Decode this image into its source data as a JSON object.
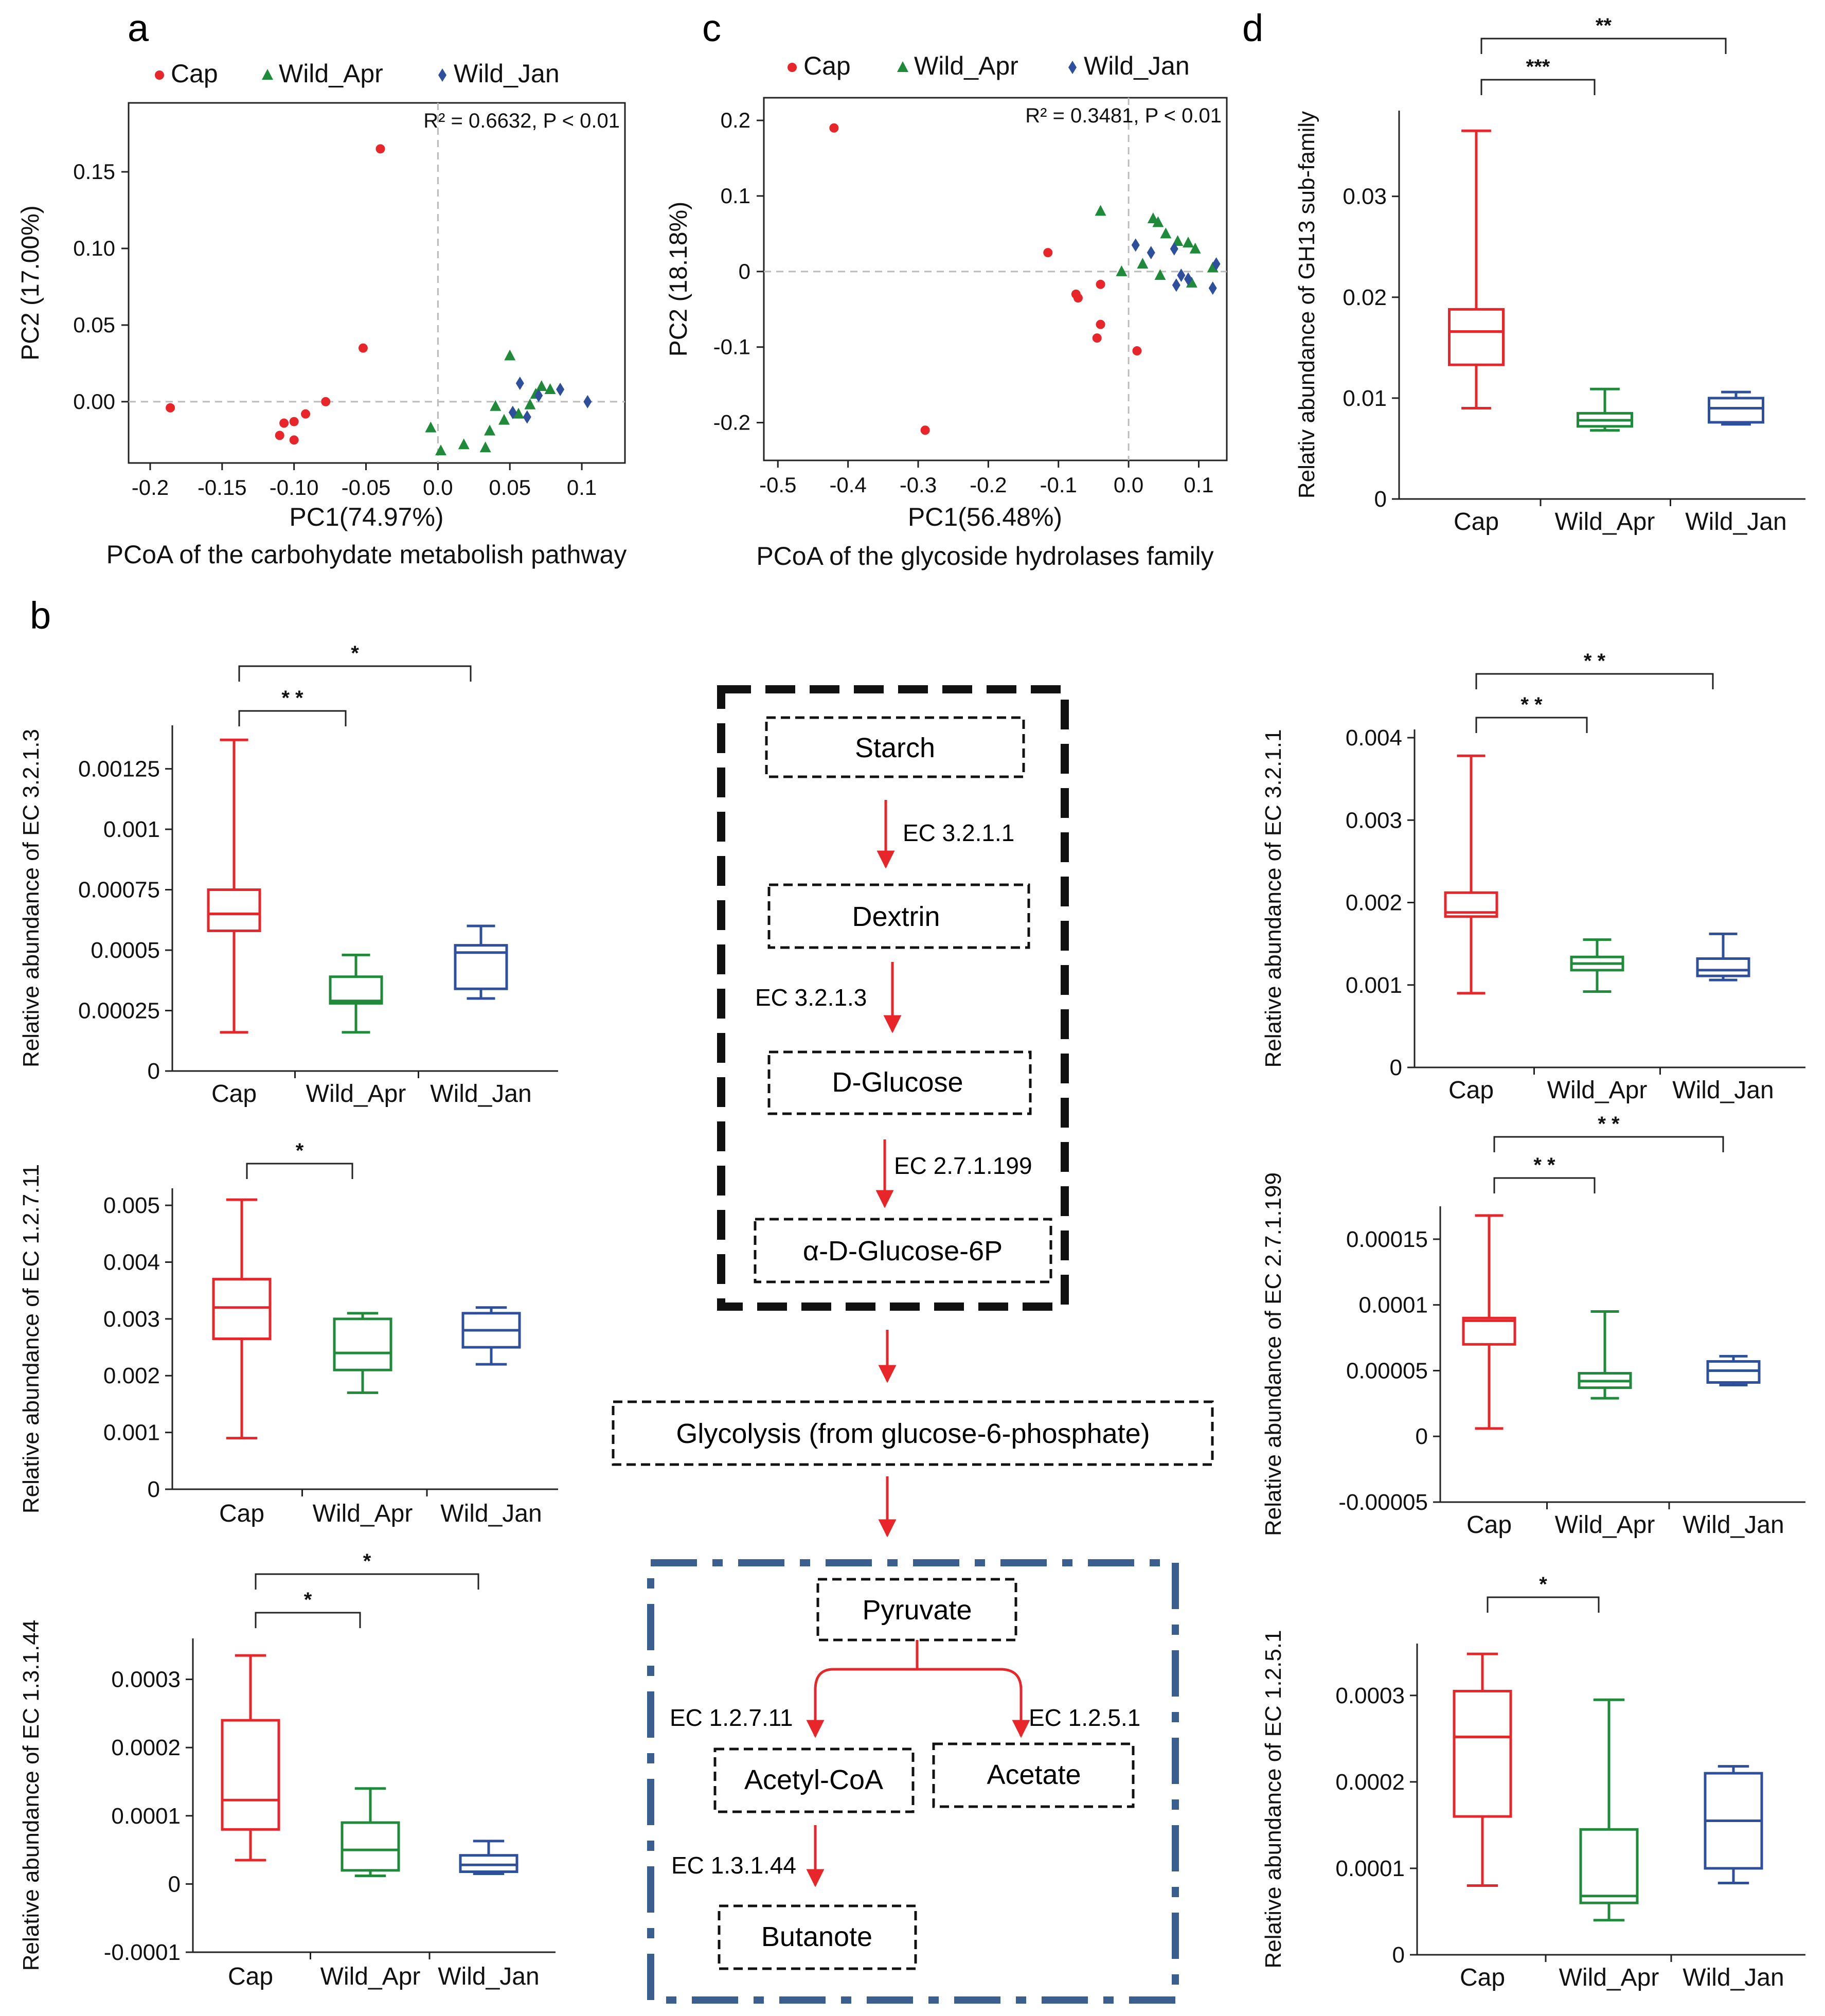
{
  "colors": {
    "cap": "#e8262a",
    "apr": "#1e8a3a",
    "jan": "#2e4f9c",
    "axis": "#222222",
    "grid": "#bbbbbb",
    "dash_black": "#111111",
    "dash_blue": "#3a5f8f",
    "arrow": "#e8262a"
  },
  "panel_letters": {
    "a": "a",
    "b": "b",
    "c": "c",
    "d": "d"
  },
  "chart_data": [
    {
      "id": "pcoa_a",
      "type": "scatter",
      "title": "PCoA of the carbohydate metabolish pathway",
      "xlabel": "PC1(74.97%)",
      "ylabel": "PC2 (17.00%)",
      "annotation": "R² = 0.6632, P < 0.01",
      "xlim": [
        -0.215,
        0.13
      ],
      "ylim": [
        -0.04,
        0.195
      ],
      "xticks": [
        -0.2,
        -0.15,
        -0.1,
        -0.05,
        0.0,
        0.05,
        0.1
      ],
      "xtick_labels": [
        "-0.2",
        "-0.15",
        "-0.10",
        "-0.05",
        "0.0",
        "0.05",
        "0.1"
      ],
      "yticks": [
        0.0,
        0.05,
        0.1,
        0.15
      ],
      "ytick_labels": [
        "0.00",
        "0.05",
        "0.10",
        "0.15"
      ],
      "legend": [
        "Cap",
        "Wild_Apr",
        "Wild_Jan"
      ],
      "series": [
        {
          "name": "Cap",
          "marker": "circle",
          "points": [
            [
              -0.04,
              0.165
            ],
            [
              -0.052,
              0.035
            ],
            [
              -0.186,
              -0.004
            ],
            [
              -0.078,
              0.0
            ],
            [
              -0.092,
              -0.008
            ],
            [
              -0.1,
              -0.013
            ],
            [
              -0.107,
              -0.014
            ],
            [
              -0.11,
              -0.022
            ],
            [
              -0.1,
              -0.025
            ]
          ]
        },
        {
          "name": "Wild_Apr",
          "marker": "triangle",
          "points": [
            [
              0.05,
              0.03
            ],
            [
              -0.005,
              -0.017
            ],
            [
              0.002,
              -0.032
            ],
            [
              0.018,
              -0.028
            ],
            [
              0.033,
              -0.03
            ],
            [
              0.036,
              -0.019
            ],
            [
              0.046,
              -0.012
            ],
            [
              0.04,
              -0.003
            ],
            [
              0.056,
              -0.008
            ],
            [
              0.068,
              0.005
            ],
            [
              0.072,
              0.01
            ],
            [
              0.078,
              0.008
            ],
            [
              0.064,
              -0.002
            ]
          ]
        },
        {
          "name": "Wild_Jan",
          "marker": "diamond",
          "points": [
            [
              0.057,
              0.012
            ],
            [
              0.052,
              -0.007
            ],
            [
              0.062,
              -0.01
            ],
            [
              0.085,
              0.008
            ],
            [
              0.104,
              0.0
            ],
            [
              0.07,
              0.004
            ]
          ]
        }
      ]
    },
    {
      "id": "pcoa_c",
      "type": "scatter",
      "title": "PCoA of the glycoside hydrolases family",
      "xlabel": "PC1(56.48%)",
      "ylabel": "PC2 (18.18%)",
      "annotation": "R² = 0.3481, P < 0.01",
      "xlim": [
        -0.52,
        0.14
      ],
      "ylim": [
        -0.25,
        0.23
      ],
      "xticks": [
        -0.5,
        -0.4,
        -0.3,
        -0.2,
        -0.1,
        0.0,
        0.1
      ],
      "xtick_labels": [
        "-0.5",
        "-0.4",
        "-0.3",
        "-0.2",
        "-0.1",
        "0.0",
        "0.1"
      ],
      "yticks": [
        -0.2,
        -0.1,
        0.0,
        0.1,
        0.2
      ],
      "ytick_labels": [
        "-0.2",
        "-0.1",
        "0",
        "0.1",
        "0.2"
      ],
      "legend": [
        "Cap",
        "Wild_Apr",
        "Wild_Jan"
      ],
      "series": [
        {
          "name": "Cap",
          "marker": "circle",
          "points": [
            [
              -0.42,
              0.19
            ],
            [
              -0.29,
              -0.21
            ],
            [
              -0.115,
              0.025
            ],
            [
              -0.075,
              -0.03
            ],
            [
              -0.072,
              -0.035
            ],
            [
              -0.04,
              -0.017
            ],
            [
              -0.04,
              -0.07
            ],
            [
              -0.045,
              -0.088
            ],
            [
              0.012,
              -0.105
            ]
          ]
        },
        {
          "name": "Wild_Apr",
          "marker": "triangle",
          "points": [
            [
              -0.04,
              0.08
            ],
            [
              -0.01,
              0.0
            ],
            [
              0.035,
              0.07
            ],
            [
              0.042,
              0.065
            ],
            [
              0.053,
              0.05
            ],
            [
              0.07,
              0.04
            ],
            [
              0.085,
              0.038
            ],
            [
              0.095,
              0.03
            ],
            [
              0.12,
              0.005
            ],
            [
              0.02,
              0.01
            ],
            [
              0.045,
              -0.005
            ],
            [
              0.09,
              -0.015
            ]
          ]
        },
        {
          "name": "Wild_Jan",
          "marker": "diamond",
          "points": [
            [
              0.01,
              0.035
            ],
            [
              0.032,
              0.025
            ],
            [
              0.065,
              0.03
            ],
            [
              0.075,
              -0.005
            ],
            [
              0.085,
              -0.01
            ],
            [
              0.068,
              -0.018
            ],
            [
              0.12,
              -0.022
            ],
            [
              0.125,
              0.01
            ]
          ]
        }
      ]
    },
    {
      "id": "box_gh13",
      "type": "box",
      "ylabel": "Relativ abundance of GH13 sub-family",
      "categories": [
        "Cap",
        "Wild_Apr",
        "Wild_Jan"
      ],
      "ylim": [
        0,
        0.0385
      ],
      "yticks": [
        0,
        0.01,
        0.02,
        0.03
      ],
      "ytick_labels": [
        "0",
        "0.01",
        "0.02",
        "0.03"
      ],
      "boxes": [
        {
          "min": 0.009,
          "q1": 0.0133,
          "median": 0.0166,
          "q3": 0.0188,
          "max": 0.0365
        },
        {
          "min": 0.0068,
          "q1": 0.0072,
          "median": 0.0078,
          "q3": 0.0085,
          "max": 0.0109
        },
        {
          "min": 0.0074,
          "q1": 0.0076,
          "median": 0.009,
          "q3": 0.01,
          "max": 0.0106
        }
      ],
      "significance": [
        {
          "from": 0,
          "to": 1,
          "label": "***"
        },
        {
          "from": 0,
          "to": 2,
          "label": "**"
        }
      ]
    },
    {
      "id": "box_ec32013",
      "type": "box",
      "ylabel": "Relative abundance of EC 3.2.1.3",
      "categories": [
        "Cap",
        "Wild_Apr",
        "Wild_Jan"
      ],
      "ylim": [
        0,
        0.00143
      ],
      "yticks": [
        0,
        0.00025,
        0.0005,
        0.00075,
        0.001,
        0.00125
      ],
      "ytick_labels": [
        "0",
        "0.00025",
        "0.0005",
        "0.00075",
        "0.001",
        "0.00125"
      ],
      "boxes": [
        {
          "min": 0.00016,
          "q1": 0.00058,
          "median": 0.00065,
          "q3": 0.00075,
          "max": 0.00137
        },
        {
          "min": 0.00016,
          "q1": 0.00028,
          "median": 0.00029,
          "q3": 0.00039,
          "max": 0.00048
        },
        {
          "min": 0.0003,
          "q1": 0.00034,
          "median": 0.00049,
          "q3": 0.00052,
          "max": 0.0006
        }
      ],
      "significance": [
        {
          "from": 0,
          "to": 1,
          "label": "* *"
        },
        {
          "from": 0,
          "to": 2,
          "label": "*"
        }
      ]
    },
    {
      "id": "box_ec12711",
      "type": "box",
      "ylabel": "Relative abundance of EC 1.2.7.11",
      "categories": [
        "Cap",
        "Wild_Apr",
        "Wild_Jan"
      ],
      "ylim": [
        0,
        0.0053
      ],
      "yticks": [
        0,
        0.001,
        0.002,
        0.003,
        0.004,
        0.005
      ],
      "ytick_labels": [
        "0",
        "0.001",
        "0.002",
        "0.003",
        "0.004",
        "0.005"
      ],
      "boxes": [
        {
          "min": 0.0009,
          "q1": 0.00265,
          "median": 0.0032,
          "q3": 0.0037,
          "max": 0.0051
        },
        {
          "min": 0.0017,
          "q1": 0.0021,
          "median": 0.0024,
          "q3": 0.003,
          "max": 0.0031
        },
        {
          "min": 0.0022,
          "q1": 0.0025,
          "median": 0.0028,
          "q3": 0.0031,
          "max": 0.0032
        }
      ],
      "significance": [
        {
          "from": 0,
          "to": 1,
          "label": "*"
        }
      ]
    },
    {
      "id": "box_ec13144",
      "type": "box",
      "ylabel": "Relative abundance of EC 1.3.1.44",
      "categories": [
        "Cap",
        "Wild_Apr",
        "Wild_Jan"
      ],
      "ylim": [
        -0.0001,
        0.00036
      ],
      "yticks": [
        -0.0001,
        0,
        0.0001,
        0.0002,
        0.0003
      ],
      "ytick_labels": [
        "-0.0001",
        "0",
        "0.0001",
        "0.0002",
        "0.0003"
      ],
      "boxes": [
        {
          "min": 3.5e-05,
          "q1": 8e-05,
          "median": 0.000123,
          "q3": 0.00024,
          "max": 0.000335
        },
        {
          "min": 1.2e-05,
          "q1": 2e-05,
          "median": 5e-05,
          "q3": 9e-05,
          "max": 0.00014
        },
        {
          "min": 1.5e-05,
          "q1": 1.8e-05,
          "median": 2.8e-05,
          "q3": 4.2e-05,
          "max": 6.3e-05
        }
      ],
      "significance": [
        {
          "from": 0,
          "to": 1,
          "label": "*"
        },
        {
          "from": 0,
          "to": 2,
          "label": "*"
        }
      ]
    },
    {
      "id": "box_ec3211",
      "type": "box",
      "ylabel": "Relative abundance of EC 3.2.1.1",
      "categories": [
        "Cap",
        "Wild_Apr",
        "Wild_Jan"
      ],
      "ylim": [
        0,
        0.0041
      ],
      "yticks": [
        0,
        0.001,
        0.002,
        0.003,
        0.004
      ],
      "ytick_labels": [
        "0",
        "0.001",
        "0.002",
        "0.003",
        "0.004"
      ],
      "boxes": [
        {
          "min": 0.0009,
          "q1": 0.00183,
          "median": 0.00188,
          "q3": 0.00212,
          "max": 0.00378
        },
        {
          "min": 0.00092,
          "q1": 0.00118,
          "median": 0.00126,
          "q3": 0.00134,
          "max": 0.00155
        },
        {
          "min": 0.00106,
          "q1": 0.00111,
          "median": 0.00118,
          "q3": 0.00132,
          "max": 0.00162
        }
      ],
      "significance": [
        {
          "from": 0,
          "to": 1,
          "label": "* *"
        },
        {
          "from": 0,
          "to": 2,
          "label": "* *"
        }
      ]
    },
    {
      "id": "box_ec271199",
      "type": "box",
      "ylabel": "Relative abundance of EC 2.7.1.199",
      "categories": [
        "Cap",
        "Wild_Apr",
        "Wild_Jan"
      ],
      "ylim": [
        -5e-05,
        0.000175
      ],
      "yticks": [
        -5e-05,
        0,
        5e-05,
        0.0001,
        0.00015
      ],
      "ytick_labels": [
        "-0.00005",
        "0",
        "0.00005",
        "0.0001",
        "0.00015"
      ],
      "boxes": [
        {
          "min": 6e-06,
          "q1": 7e-05,
          "median": 8.8e-05,
          "q3": 9e-05,
          "max": 0.000168
        },
        {
          "min": 2.9e-05,
          "q1": 3.7e-05,
          "median": 4.2e-05,
          "q3": 4.8e-05,
          "max": 9.5e-05
        },
        {
          "min": 3.9e-05,
          "q1": 4.1e-05,
          "median": 5e-05,
          "q3": 5.7e-05,
          "max": 6.1e-05
        }
      ],
      "significance": [
        {
          "from": 0,
          "to": 1,
          "label": "* *"
        },
        {
          "from": 0,
          "to": 2,
          "label": "* *"
        }
      ]
    },
    {
      "id": "box_ec1251",
      "type": "box",
      "ylabel": "Relative abundance of EC 1.2.5.1",
      "categories": [
        "Cap",
        "Wild_Apr",
        "Wild_Jan"
      ],
      "ylim": [
        0,
        0.00036
      ],
      "yticks": [
        0,
        0.0001,
        0.0002,
        0.0003
      ],
      "ytick_labels": [
        "0",
        "0.0001",
        "0.0002",
        "0.0003"
      ],
      "boxes": [
        {
          "min": 8e-05,
          "q1": 0.00016,
          "median": 0.000252,
          "q3": 0.000305,
          "max": 0.000348
        },
        {
          "min": 4e-05,
          "q1": 6e-05,
          "median": 6.8e-05,
          "q3": 0.000145,
          "max": 0.000295
        },
        {
          "min": 8.3e-05,
          "q1": 0.0001,
          "median": 0.000155,
          "q3": 0.00021,
          "max": 0.000218
        }
      ],
      "significance": [
        {
          "from": 0,
          "to": 1,
          "label": "*"
        }
      ]
    }
  ],
  "pathway": {
    "nodes": {
      "starch": "Starch",
      "dextrin": "Dextrin",
      "glucose": "D-Glucose",
      "g6p": "α-D-Glucose-6P",
      "glycolysis": "Glycolysis (from glucose-6-phosphate)",
      "pyruvate": "Pyruvate",
      "acetylcoa": "Acetyl-CoA",
      "acetate": "Acetate",
      "butanote": "Butanote"
    },
    "enzymes": {
      "e1": "EC 3.2.1.1",
      "e2": "EC 3.2.1.3",
      "e3": "EC 2.7.1.199",
      "e4": "EC 1.2.7.11",
      "e5": "EC 1.2.5.1",
      "e6": "EC 1.3.1.44"
    }
  }
}
